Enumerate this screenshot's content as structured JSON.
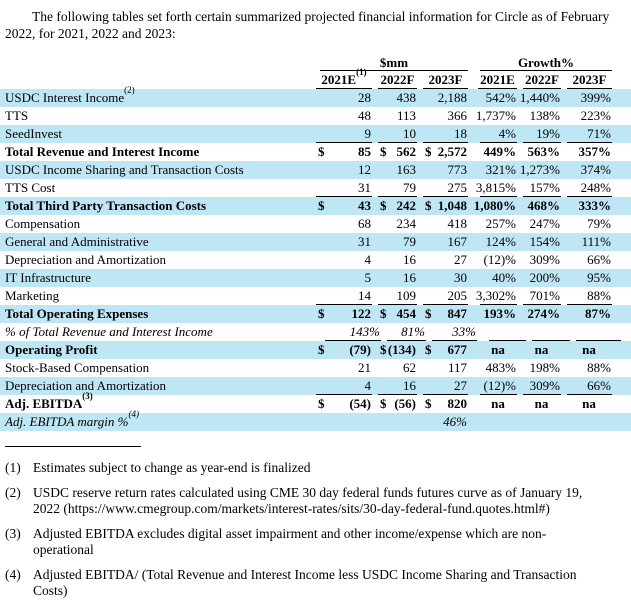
{
  "colors": {
    "stripe": "#bfe6f4",
    "text": "#000000"
  },
  "intro": "The following tables set forth certain summarized projected financial information for Circle as of February 2022, for 2021, 2022 and 2023:",
  "table": {
    "dollar_sign": "$",
    "group_headers": {
      "mm": "$mm",
      "growth": "Growth%"
    },
    "mm_cols": [
      "2021E",
      "2022F",
      "2023F"
    ],
    "mm_col1_sup": "(1)",
    "growth_cols": [
      "2021E",
      "2022F",
      "2023F"
    ],
    "rows": [
      {
        "label": "USDC Interest Income",
        "sup": "(2)",
        "v": [
          "28",
          "438",
          "2,188"
        ],
        "g": [
          "542%",
          "1,440%",
          "399%"
        ],
        "striped": true
      },
      {
        "label": "TTS",
        "v": [
          "48",
          "113",
          "366"
        ],
        "g": [
          "1,737%",
          "138%",
          "223%"
        ]
      },
      {
        "label": "SeedInvest",
        "v": [
          "9",
          "10",
          "18"
        ],
        "g": [
          "4%",
          "19%",
          "71%"
        ],
        "striped": true,
        "underline": true
      },
      {
        "label": "Total Revenue and Interest Income",
        "v": [
          "85",
          "562",
          "2,572"
        ],
        "g": [
          "449%",
          "563%",
          "357%"
        ],
        "bold": true,
        "dollar": true
      },
      {
        "label": "USDC Income Sharing and Transaction Costs",
        "v": [
          "12",
          "163",
          "773"
        ],
        "g": [
          "321%",
          "1,273%",
          "374%"
        ],
        "striped": true
      },
      {
        "label": "TTS Cost",
        "v": [
          "31",
          "79",
          "275"
        ],
        "g": [
          "3,815%",
          "157%",
          "248%"
        ],
        "underline": true
      },
      {
        "label": "Total Third Party Transaction Costs",
        "v": [
          "43",
          "242",
          "1,048"
        ],
        "g": [
          "1,080%",
          "468%",
          "333%"
        ],
        "striped": true,
        "bold": true,
        "dollar": true
      },
      {
        "label": "Compensation",
        "v": [
          "68",
          "234",
          "418"
        ],
        "g": [
          "257%",
          "247%",
          "79%"
        ]
      },
      {
        "label": "General and Administrative",
        "v": [
          "31",
          "79",
          "167"
        ],
        "g": [
          "124%",
          "154%",
          "111%"
        ],
        "striped": true
      },
      {
        "label": "Depreciation and Amortization",
        "v": [
          "4",
          "16",
          "27"
        ],
        "g": [
          "(12)%",
          "309%",
          "66%"
        ]
      },
      {
        "label": "IT Infrastructure",
        "v": [
          "5",
          "16",
          "30"
        ],
        "g": [
          "40%",
          "200%",
          "95%"
        ],
        "striped": true
      },
      {
        "label": "Marketing",
        "v": [
          "14",
          "109",
          "205"
        ],
        "g": [
          "3,302%",
          "701%",
          "88%"
        ],
        "underline": true
      },
      {
        "label": "Total Operating Expenses",
        "v": [
          "122",
          "454",
          "847"
        ],
        "g": [
          "193%",
          "274%",
          "87%"
        ],
        "striped": true,
        "bold": true,
        "dollar": true
      },
      {
        "label": "% of Total Revenue and Interest Income",
        "v": [
          "143%",
          "81%",
          "33%"
        ],
        "g": [
          "",
          "",
          ""
        ],
        "italic": true,
        "underline": true,
        "shift": true
      },
      {
        "label": "Operating Profit",
        "v": [
          "(79)",
          "(134)",
          "677"
        ],
        "g": [
          "na",
          "na",
          "na"
        ],
        "striped": true,
        "bold": true,
        "dollar": true
      },
      {
        "label": "Stock-Based Compensation",
        "v": [
          "21",
          "62",
          "117"
        ],
        "g": [
          "483%",
          "198%",
          "88%"
        ]
      },
      {
        "label": "Depreciation and Amortization",
        "v": [
          "4",
          "16",
          "27"
        ],
        "g": [
          "(12)%",
          "309%",
          "66%"
        ],
        "striped": true,
        "underline": true
      },
      {
        "label": "Adj. EBITDA",
        "sup": "(3)",
        "v": [
          "(54)",
          "(56)",
          "820"
        ],
        "g": [
          "na",
          "na",
          "na"
        ],
        "bold": true,
        "dollar": true
      },
      {
        "label": "Adj. EBITDA margin %",
        "sup": "(4)",
        "v": [
          "",
          "",
          "46%"
        ],
        "g": [
          "",
          "",
          ""
        ],
        "striped": true,
        "italic": true
      }
    ]
  },
  "footnotes": [
    {
      "num": "(1)",
      "text": "Estimates subject to change as year-end is finalized"
    },
    {
      "num": "(2)",
      "text": "USDC reserve return rates calculated using CME 30 day federal funds futures curve as of January 19, 2022 (https://www.cmegroup.com/markets/interest-rates/sits/30-day-federal-fund.quotes.html#)"
    },
    {
      "num": "(3)",
      "text": "Adjusted EBITDA excludes digital asset impairment and other income/expense which are non-operational"
    },
    {
      "num": "(4)",
      "text": "Adjusted EBITDA/ (Total Revenue and Interest Income less USDC Income Sharing and Transaction Costs)"
    }
  ]
}
